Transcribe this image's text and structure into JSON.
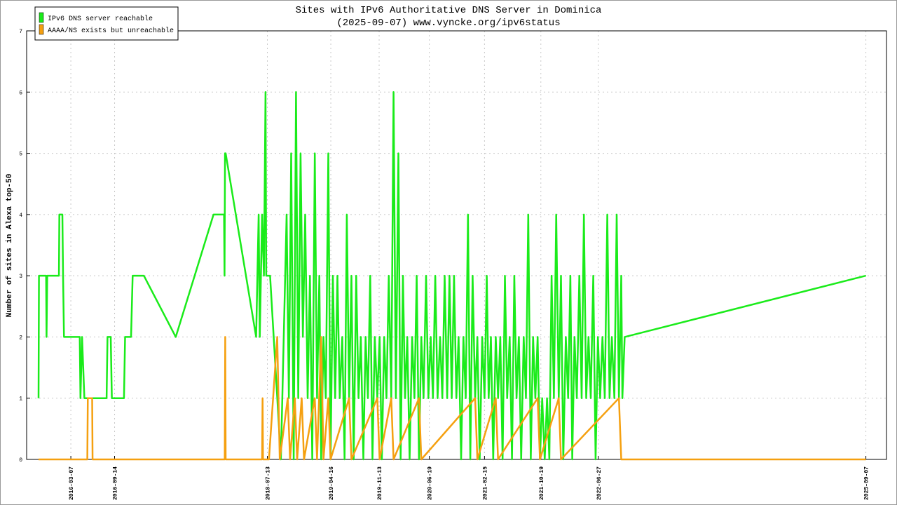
{
  "chart_data": {
    "type": "line",
    "title": "Sites with IPv6 Authoritative DNS Server in Dominica",
    "subtitle": "(2025-09-07) www.vyncke.org/ipv6status",
    "y_label": "Number of sites in Alexa top-50",
    "legend": "top-left",
    "grid": true,
    "xlim": [
      "2015-08-27",
      "2025-12-06"
    ],
    "xticks": [
      "2016-03-07",
      "2016-09-14",
      "2018-07-13",
      "2019-04-16",
      "2019-11-13",
      "2020-06-19",
      "2021-02-15",
      "2021-10-19",
      "2022-06-27",
      "2025-09-07"
    ],
    "ylim": [
      0,
      7
    ],
    "yticks": [
      0,
      1,
      2,
      3,
      4,
      5,
      6,
      7
    ],
    "series": [
      {
        "name": "IPv6 DNS server reachable",
        "color": "#1aeb1a",
        "x": [
          "2015-10-18",
          "2015-10-20",
          "2015-11-20",
          "2015-11-22",
          "2015-11-25",
          "2016-01-15",
          "2016-01-17",
          "2016-01-30",
          "2016-02-02",
          "2016-02-06",
          "2016-04-15",
          "2016-04-18",
          "2016-04-25",
          "2016-05-05",
          "2016-08-10",
          "2016-08-14",
          "2016-08-28",
          "2016-09-02",
          "2016-10-25",
          "2016-10-30",
          "2016-11-25",
          "2016-12-02",
          "2017-01-20",
          "2017-06-08",
          "2017-11-20",
          "2018-01-05",
          "2018-01-07",
          "2018-01-09",
          "2018-01-12",
          "2018-05-25",
          "2018-06-05",
          "2018-06-10",
          "2018-06-20",
          "2018-06-28",
          "2018-07-05",
          "2018-07-08",
          "2018-07-25",
          "2018-09-10",
          "2018-10-05",
          "2018-10-15",
          "2018-10-25",
          "2018-11-05",
          "2018-11-15",
          "2018-11-25",
          "2018-12-05",
          "2018-12-15",
          "2018-12-25",
          "2019-01-05",
          "2019-01-15",
          "2019-01-25",
          "2019-02-05",
          "2019-02-15",
          "2019-02-25",
          "2019-03-05",
          "2019-03-15",
          "2019-03-25",
          "2019-04-05",
          "2019-04-15",
          "2019-04-25",
          "2019-05-05",
          "2019-05-15",
          "2019-05-25",
          "2019-06-05",
          "2019-06-15",
          "2019-06-25",
          "2019-07-05",
          "2019-07-15",
          "2019-07-25",
          "2019-08-05",
          "2019-08-15",
          "2019-08-25",
          "2019-09-05",
          "2019-09-15",
          "2019-09-25",
          "2019-10-05",
          "2019-10-15",
          "2019-10-25",
          "2019-11-05",
          "2019-11-15",
          "2019-11-25",
          "2019-12-05",
          "2019-12-15",
          "2019-12-25",
          "2020-01-05",
          "2020-01-15",
          "2020-01-25",
          "2020-02-05",
          "2020-02-15",
          "2020-02-25",
          "2020-03-05",
          "2020-03-15",
          "2020-03-25",
          "2020-04-05",
          "2020-04-15",
          "2020-04-25",
          "2020-05-05",
          "2020-05-15",
          "2020-05-25",
          "2020-06-05",
          "2020-06-15",
          "2020-06-25",
          "2020-07-05",
          "2020-07-15",
          "2020-07-25",
          "2020-08-05",
          "2020-08-15",
          "2020-08-25",
          "2020-09-05",
          "2020-09-15",
          "2020-09-25",
          "2020-10-05",
          "2020-10-15",
          "2020-10-25",
          "2020-11-05",
          "2020-11-15",
          "2020-11-25",
          "2020-12-05",
          "2020-12-15",
          "2020-12-25",
          "2021-01-05",
          "2021-01-15",
          "2021-01-25",
          "2021-02-05",
          "2021-02-15",
          "2021-02-25",
          "2021-03-05",
          "2021-03-15",
          "2021-03-25",
          "2021-04-05",
          "2021-04-15",
          "2021-04-25",
          "2021-05-05",
          "2021-05-15",
          "2021-05-25",
          "2021-06-05",
          "2021-06-15",
          "2021-06-25",
          "2021-07-05",
          "2021-07-15",
          "2021-07-25",
          "2021-08-05",
          "2021-08-15",
          "2021-08-25",
          "2021-09-05",
          "2021-09-15",
          "2021-09-25",
          "2021-10-05",
          "2021-10-15",
          "2021-10-25",
          "2021-11-05",
          "2021-11-15",
          "2021-11-25",
          "2021-12-05",
          "2021-12-15",
          "2021-12-25",
          "2022-01-05",
          "2022-01-15",
          "2022-01-25",
          "2022-02-05",
          "2022-02-15",
          "2022-02-25",
          "2022-03-05",
          "2022-03-15",
          "2022-03-25",
          "2022-04-05",
          "2022-04-15",
          "2022-04-25",
          "2022-05-05",
          "2022-05-15",
          "2022-05-25",
          "2022-06-05",
          "2022-06-15",
          "2022-06-25",
          "2022-07-05",
          "2022-07-15",
          "2022-07-25",
          "2022-08-05",
          "2022-08-15",
          "2022-08-25",
          "2022-09-05",
          "2022-09-15",
          "2022-09-25",
          "2022-10-05",
          "2022-10-10",
          "2022-10-20",
          "2025-09-07"
        ],
        "values": [
          1,
          3,
          3,
          2,
          3,
          3,
          4,
          4,
          3,
          2,
          2,
          1,
          2,
          1,
          1,
          2,
          2,
          1,
          1,
          2,
          2,
          3,
          3,
          2,
          4,
          4,
          3,
          5,
          5,
          2,
          4,
          2,
          4,
          3,
          6,
          3,
          3,
          0,
          4,
          1,
          5,
          0,
          6,
          1,
          5,
          2,
          4,
          1,
          3,
          0,
          5,
          1,
          3,
          0,
          2,
          1,
          5,
          0,
          3,
          1,
          3,
          1,
          2,
          0,
          4,
          1,
          3,
          0,
          3,
          1,
          2,
          0,
          2,
          1,
          3,
          0,
          2,
          1,
          2,
          0,
          2,
          1,
          3,
          1,
          6,
          1,
          5,
          0,
          3,
          1,
          2,
          0,
          2,
          1,
          3,
          0,
          2,
          1,
          3,
          1,
          2,
          1,
          3,
          1,
          2,
          1,
          3,
          1,
          3,
          1,
          3,
          1,
          2,
          0,
          2,
          1,
          4,
          0,
          3,
          1,
          2,
          0,
          2,
          1,
          3,
          1,
          2,
          0,
          2,
          1,
          2,
          0,
          3,
          1,
          2,
          0,
          3,
          1,
          2,
          0,
          2,
          1,
          4,
          0,
          2,
          1,
          2,
          0,
          1,
          0,
          1,
          0,
          3,
          1,
          4,
          1,
          3,
          0,
          2,
          1,
          3,
          0,
          2,
          1,
          3,
          1,
          4,
          1,
          2,
          1,
          3,
          0,
          2,
          1,
          2,
          1,
          4,
          1,
          2,
          1,
          4,
          1,
          3,
          1,
          2,
          3
        ]
      },
      {
        "name": "AAAA/NS exists but unreachable",
        "color": "#f5a010",
        "x": [
          "2015-10-18",
          "2016-05-18",
          "2016-05-20",
          "2016-06-08",
          "2016-06-10",
          "2018-01-08",
          "2018-01-10",
          "2018-01-12",
          "2018-06-20",
          "2018-06-22",
          "2018-06-24",
          "2018-07-20",
          "2018-08-25",
          "2018-09-05",
          "2018-10-10",
          "2018-10-20",
          "2018-11-10",
          "2018-11-20",
          "2018-12-10",
          "2018-12-20",
          "2019-02-05",
          "2019-02-15",
          "2019-03-05",
          "2019-03-15",
          "2019-04-05",
          "2019-04-15",
          "2019-07-05",
          "2019-07-15",
          "2019-11-05",
          "2019-11-15",
          "2020-01-05",
          "2020-01-15",
          "2020-05-05",
          "2020-05-15",
          "2021-01-05",
          "2021-01-15",
          "2021-04-05",
          "2021-04-15",
          "2021-10-05",
          "2021-10-15",
          "2022-01-05",
          "2022-01-15",
          "2022-09-25",
          "2022-10-05",
          "2025-09-07"
        ],
        "values": [
          0,
          0,
          1,
          1,
          0,
          0,
          2,
          0,
          0,
          1,
          0,
          0,
          2,
          0,
          1,
          0,
          1,
          0,
          1,
          0,
          1,
          0,
          2,
          0,
          1,
          0,
          1,
          0,
          1,
          0,
          1,
          0,
          1,
          0,
          1,
          0,
          1,
          0,
          1,
          0,
          1,
          0,
          1,
          0,
          0
        ]
      }
    ]
  }
}
